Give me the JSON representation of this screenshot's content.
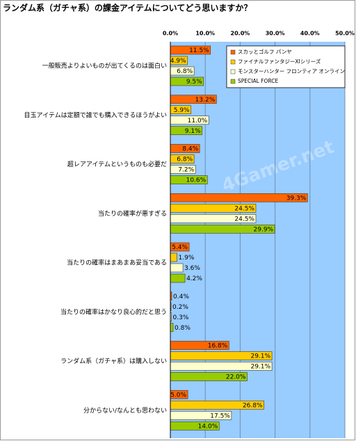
{
  "chart_data": {
    "type": "hbar",
    "title": "ランダム系（ガチャ系）の課金アイテムについてどう思いますか？",
    "watermark": "4Gamer.net",
    "categories": [
      "一般販売よりよいものが出てくるのは面白い",
      "目玉アイテムは定額で誰でも購入できるほうがよい",
      "超レアアイテムというものも必要だ",
      "当たりの確率が悪すぎる",
      "当たりの確率はまあまあ妥当である",
      "当たりの確率はかなり良心的だと思う",
      "ランダム系（ガチャ系）は購入しない",
      "分からない/なんとも思わない"
    ],
    "series": [
      {
        "name": "スカッとゴルフ パンヤ",
        "color": "#ff6600",
        "values": [
          11.5,
          13.2,
          8.4,
          39.3,
          5.4,
          0.4,
          16.8,
          5.0
        ],
        "value_labels": [
          "11.5%",
          "13.2%",
          "8.4%",
          "39.3%",
          "5.4%",
          "0.4%",
          "16.8%",
          "5.0%"
        ]
      },
      {
        "name": "ファイナルファンタジーXIシリーズ",
        "color": "#ffcc00",
        "values": [
          4.9,
          5.9,
          6.8,
          24.5,
          1.9,
          0.2,
          29.1,
          26.8
        ],
        "value_labels": [
          "4.9%",
          "5.9%",
          "6.8%",
          "24.5%",
          "1.9%",
          "0.2%",
          "29.1%",
          "26.8%"
        ]
      },
      {
        "name": "モンスターハンター フロンティア オンライン",
        "color": "#ffffcc",
        "values": [
          6.8,
          11.0,
          7.2,
          24.5,
          3.6,
          0.3,
          29.1,
          17.5
        ],
        "value_labels": [
          "6.8%",
          "11.0%",
          "7.2%",
          "24.5%",
          "3.6%",
          "0.3%",
          "29.1%",
          "17.5%"
        ]
      },
      {
        "name": "SPECIAL FORCE",
        "color": "#99cc00",
        "values": [
          9.5,
          9.1,
          10.6,
          29.9,
          4.2,
          0.8,
          22.0,
          14.0
        ],
        "value_labels": [
          "9.5%",
          "9.1%",
          "10.6%",
          "29.9%",
          "4.2%",
          "0.8%",
          "22.0%",
          "14.0%"
        ]
      }
    ],
    "xlim": [
      0,
      50
    ],
    "xticks": [
      {
        "value": 0,
        "label": "0.0%"
      },
      {
        "value": 10,
        "label": "10.0%"
      },
      {
        "value": 20,
        "label": "20.0%"
      },
      {
        "value": 30,
        "label": "30.0%"
      },
      {
        "value": 40,
        "label": "40.0%"
      },
      {
        "value": 50,
        "label": "50.0%"
      }
    ],
    "grid": true,
    "legend": "top-right",
    "background": "#99ccff"
  }
}
